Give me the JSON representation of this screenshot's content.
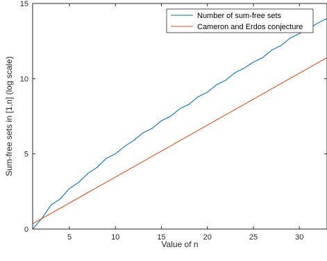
{
  "chart_data": {
    "type": "line",
    "xlabel": "Value of n",
    "ylabel": "Sum-free sets in [1,n] (log scale)",
    "xlim": [
      1,
      33
    ],
    "ylim": [
      0,
      15
    ],
    "xticks": [
      5,
      10,
      15,
      20,
      25,
      30
    ],
    "yticks": [
      0,
      5,
      10,
      15
    ],
    "grid": false,
    "legend_position": "top-right",
    "series": [
      {
        "name": "Number of sum-free sets",
        "color": "#0072BD",
        "x": [
          1,
          2,
          3,
          4,
          5,
          6,
          7,
          8,
          9,
          10,
          11,
          12,
          13,
          14,
          15,
          16,
          17,
          18,
          19,
          20,
          21,
          22,
          23,
          24,
          25,
          26,
          27,
          28,
          29,
          30,
          31,
          32,
          33
        ],
        "y": [
          0.0,
          0.7,
          1.6,
          2.0,
          2.7,
          3.1,
          3.7,
          4.1,
          4.7,
          5.0,
          5.5,
          5.9,
          6.4,
          6.7,
          7.2,
          7.5,
          8.0,
          8.3,
          8.8,
          9.1,
          9.6,
          9.9,
          10.4,
          10.7,
          11.1,
          11.4,
          11.9,
          12.2,
          12.7,
          13.0,
          13.3,
          13.7,
          14.0
        ]
      },
      {
        "name": "Cameron and Erdos conjecture",
        "color": "#D95319",
        "x": [
          1,
          33
        ],
        "y": [
          0.35,
          11.4
        ]
      }
    ]
  }
}
